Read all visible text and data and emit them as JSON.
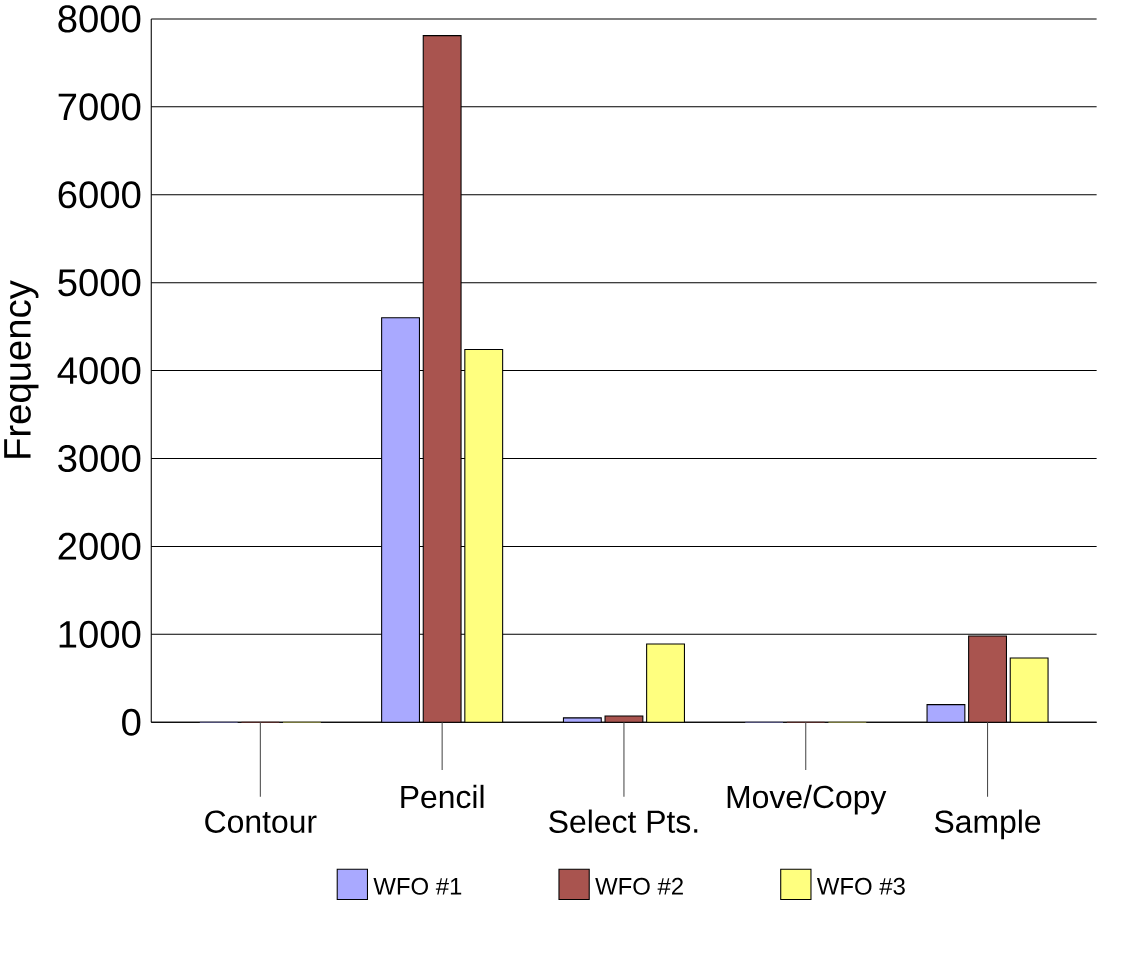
{
  "chart_data": {
    "type": "bar",
    "ylabel": "Frequency",
    "categories": [
      "Contour",
      "Pencil",
      "Select Pts.",
      "Move/Copy",
      "Sample"
    ],
    "series": [
      {
        "name": "WFO #1",
        "color": "#a9a9ff",
        "values": [
          0,
          4600,
          50,
          0,
          200
        ]
      },
      {
        "name": "WFO #2",
        "color": "#a9544f",
        "values": [
          0,
          7810,
          70,
          0,
          980
        ]
      },
      {
        "name": "WFO #3",
        "color": "#ffff7f",
        "values": [
          0,
          4240,
          890,
          0,
          730
        ]
      }
    ],
    "ylim": [
      0,
      8000
    ],
    "yticks": [
      0,
      1000,
      2000,
      3000,
      4000,
      5000,
      6000,
      7000,
      8000
    ],
    "grid": "y",
    "legend": "bottom"
  }
}
